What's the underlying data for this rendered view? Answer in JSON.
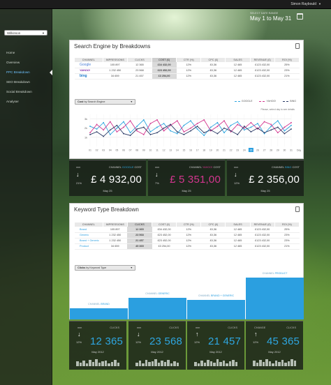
{
  "topbar": {
    "user": "Simon Raybould"
  },
  "sidebar": {
    "account": "Wilkinson",
    "items": [
      "Home",
      "Overview",
      "PPC Breakdown",
      "SEO Breakdown",
      "Social Breakdown",
      "Analyser"
    ]
  },
  "date": {
    "caption": "SELECT DATE RANGE",
    "range": "May 1 to May 31"
  },
  "search_panel": {
    "title": "Search Engine by Breakdowns",
    "columns": [
      "CHANNEL",
      "IMPRESSIONS",
      "CLICKS",
      "COST (£)",
      "CTR (%)",
      "CPC (£)",
      "SALES",
      "REVENUE (£)",
      "ROI (%)"
    ],
    "rows": [
      {
        "channel": "Google",
        "cells": [
          "105 897",
          "12 365",
          "£34 432,00",
          "12%",
          "£0,36",
          "12 465",
          "£123 432,00",
          "25%"
        ]
      },
      {
        "channel": "YAHOO!",
        "cells": [
          "1 232 450",
          "23 568",
          "£23 452,00",
          "12%",
          "£0,36",
          "12 465",
          "£123 432,00",
          "23%"
        ]
      },
      {
        "channel": "bing",
        "cells": [
          "34 659",
          "21 457",
          "£3 254,00",
          "12%",
          "£0,36",
          "12 465",
          "£123 432,00",
          "21%"
        ]
      }
    ],
    "dropdown": {
      "bold": "Cost",
      "rest": " by Search Engine"
    },
    "legend": [
      "GOOGLE",
      "YAHOO!",
      "BING"
    ],
    "hint": "Please, select day to see details",
    "colors": {
      "google": "#2ea6e0",
      "yahoo": "#d4368f",
      "bing": "#2a3a66",
      "accent": "#2b9fe0"
    }
  },
  "chart_data": {
    "type": "line",
    "x": [
      "01",
      "02",
      "03",
      "04",
      "05",
      "06",
      "07",
      "08",
      "09",
      "10",
      "11",
      "12",
      "13",
      "14",
      "15",
      "16",
      "17",
      "18",
      "19",
      "20",
      "21",
      "22",
      "23",
      "24",
      "25",
      "26",
      "27",
      "28",
      "29",
      "30",
      "31"
    ],
    "xlabel": "Days",
    "yticks": [
      "1k",
      "2k",
      "3k"
    ],
    "ylim": [
      0,
      3500
    ],
    "grid": true,
    "selected_day": "25",
    "series": [
      {
        "name": "GOOGLE",
        "values": [
          2200,
          1900,
          2600,
          1300,
          2000,
          2700,
          1500,
          2200,
          2900,
          1600,
          2100,
          2500,
          1700,
          1400,
          2300,
          2800,
          1900,
          1200,
          2100,
          2600,
          1500,
          2300,
          2700,
          1800,
          2100,
          2500,
          1400,
          2200,
          2800,
          1700,
          2300
        ]
      },
      {
        "name": "YAHOO!",
        "values": [
          1500,
          2400,
          1800,
          2700,
          1600,
          2100,
          2800,
          1700,
          1300,
          2500,
          2900,
          1700,
          2300,
          2800,
          1600,
          2000,
          2500,
          2900,
          1700,
          2200,
          2800,
          1600,
          2400,
          2000,
          2600,
          1900,
          2700,
          2400,
          1500,
          2100,
          2600
        ]
      },
      {
        "name": "BING",
        "values": [
          1300,
          1600,
          1100,
          1800,
          2300,
          1400,
          1200,
          1900,
          2100,
          1300,
          1500,
          2000,
          2400,
          1600,
          1300,
          1700,
          2200,
          1500,
          1800,
          1400,
          2000,
          1700,
          1300,
          2200,
          1600,
          2000,
          1500,
          1800,
          2100,
          1400,
          1900
        ]
      }
    ]
  },
  "search_kpis": [
    {
      "mm": "mm",
      "channel": "CHANNEL",
      "channel_name": "GOOGLE",
      "metric": "COST",
      "pct": "21%",
      "value": "£ 4 932,00",
      "date": "May 25",
      "color": "#2ea6e0"
    },
    {
      "mm": "mm",
      "channel": "CHANNEL",
      "channel_name": "YAHOO!",
      "metric": "COST",
      "pct": "7%",
      "value": "£ 5 351,00",
      "date": "May 25",
      "color": "#d4368f"
    },
    {
      "mm": "mm",
      "channel": "CHANNEL",
      "channel_name": "BING",
      "metric": "COST",
      "pct": "12%",
      "value": "£ 2 356,00",
      "date": "May 25",
      "color": "#2ea6e0"
    }
  ],
  "keyword_panel": {
    "title": "Keyword Type Breakdown",
    "columns": [
      "CHANNEL",
      "IMPRESSIONS",
      "CLICKS",
      "COST (£)",
      "CTR (%)",
      "CPC (£)",
      "SALES",
      "REVENUE (£)",
      "ROI (%)"
    ],
    "rows": [
      {
        "channel": "Brand",
        "cells": [
          "105 897",
          "12 365",
          "£34 432,00",
          "12%",
          "£0,36",
          "12 465",
          "£123 432,00",
          "25%"
        ]
      },
      {
        "channel": "Generic",
        "cells": [
          "1 232 450",
          "23 568",
          "£23 452,00",
          "12%",
          "£0,36",
          "12 465",
          "£123 432,00",
          "23%"
        ]
      },
      {
        "channel": "Brand + Generic",
        "cells": [
          "1 232 450",
          "21 457",
          "£23 452,00",
          "12%",
          "£0,36",
          "12 465",
          "£123 432,00",
          "23%"
        ]
      },
      {
        "channel": "Product",
        "cells": [
          "34 659",
          "45 365",
          "£3 254,00",
          "12%",
          "£0,36",
          "12 465",
          "£123 432,00",
          "21%"
        ]
      }
    ],
    "dropdown": {
      "bold": "Clicks",
      "rest": " by Keyword Type"
    },
    "bars": [
      {
        "label": "CHANNEL",
        "name": "BRAND",
        "value": 12365
      },
      {
        "label": "CHANNEL",
        "name": "GENERIC",
        "value": 23568
      },
      {
        "label": "CHANNEL",
        "name": "BRAND + GENERIC",
        "value": 21457
      },
      {
        "label": "CHANNEL",
        "name": "PRODUCT",
        "value": 45365
      }
    ]
  },
  "keyword_kpis": [
    {
      "top": "mm",
      "metric": "CLICKS",
      "pct": "12%",
      "value": "12 365",
      "date": "May 2012",
      "dir": "down"
    },
    {
      "top": "mm",
      "metric": "CLICKS",
      "pct": "12%",
      "value": "23 568",
      "date": "May 2012",
      "dir": "down"
    },
    {
      "top": "mm",
      "metric": "CLICKS",
      "pct": "12%",
      "value": "21 457",
      "date": "May 2012",
      "dir": "up"
    },
    {
      "top": "CHANGE",
      "metric": "CLICKS",
      "pct": "12%",
      "value": "45 365",
      "date": "May 2012",
      "dir": "up"
    }
  ]
}
